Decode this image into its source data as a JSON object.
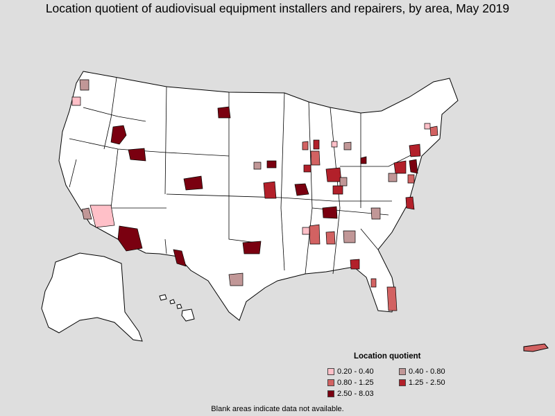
{
  "title": "Location quotient of audiovisual equipment installers and repairers, by area, May 2019",
  "legend": {
    "title": "Location quotient",
    "items": [
      {
        "label": "0.20 - 0.40",
        "color": "#ffc0c8"
      },
      {
        "label": "0.40 - 0.80",
        "color": "#c19797"
      },
      {
        "label": "0.80 - 1.25",
        "color": "#d26262"
      },
      {
        "label": "1.25 - 2.50",
        "color": "#b2202a"
      },
      {
        "label": "2.50 - 8.03",
        "color": "#7a0010"
      }
    ]
  },
  "footnote": "Blank areas indicate data not available.",
  "colors": {
    "background": "#dedede",
    "land": "#ffffff",
    "border": "#000000"
  }
}
